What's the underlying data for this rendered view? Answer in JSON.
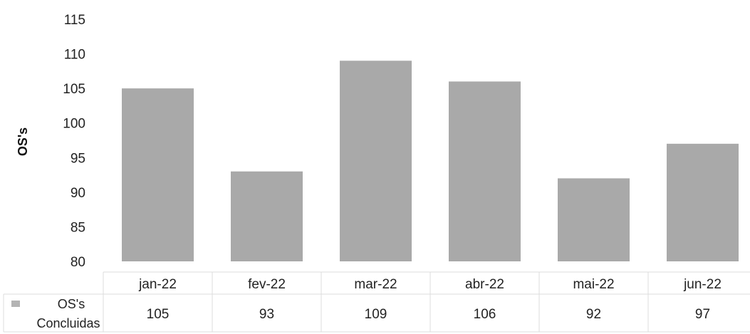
{
  "chart_data": {
    "type": "bar",
    "ylabel": "OS's",
    "ylim": [
      80,
      115
    ],
    "yticks": [
      80,
      85,
      90,
      95,
      100,
      105,
      110,
      115
    ],
    "categories": [
      "jan-22",
      "fev-22",
      "mar-22",
      "abr-22",
      "mai-22",
      "jun-22"
    ],
    "series": [
      {
        "name": "OS's Concluidas",
        "legend_lines": [
          "OS's",
          "Concluidas"
        ],
        "values": [
          105,
          93,
          109,
          106,
          92,
          97
        ]
      }
    ],
    "data_table": true,
    "grid": false,
    "bar_color": "#a9a9a9",
    "legend_marker_color": "#b4b4b4"
  }
}
